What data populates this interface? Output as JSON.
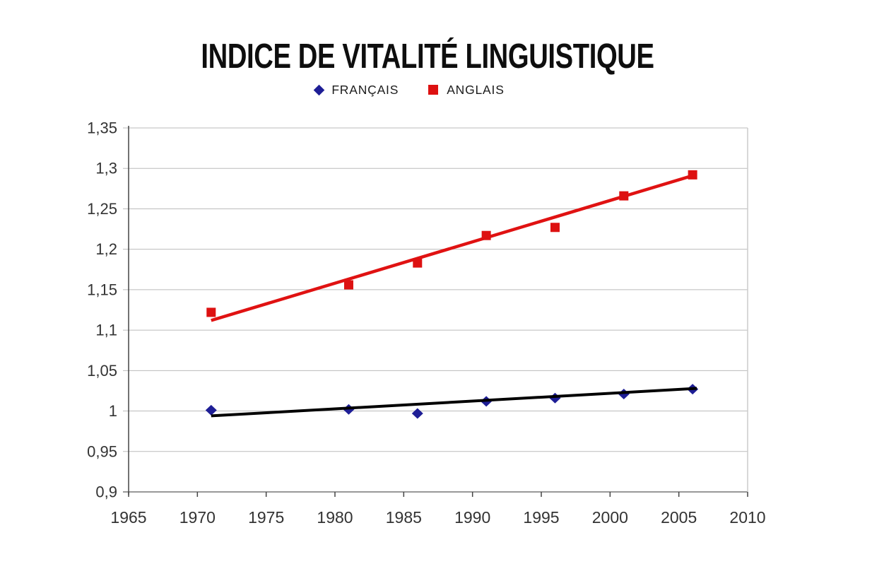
{
  "title": "INDICE DE VITALITÉ LINGUISTIQUE",
  "colors": {
    "background": "#ffffff",
    "title_text": "#0e0e0e",
    "axis_text": "#333333",
    "grid": "#bbbbbb",
    "axis_line": "#444444",
    "bottom_axis_line": "#999999",
    "right_border": "#cccccc",
    "francais_marker": "#1e1e96",
    "francais_trend": "#000000",
    "anglais_marker": "#dd1111",
    "anglais_trend": "#e01212"
  },
  "legend": [
    {
      "label": "FRANÇAIS",
      "marker": "diamond",
      "color": "#1e1e96"
    },
    {
      "label": "ANGLAIS",
      "marker": "square",
      "color": "#dd1111"
    }
  ],
  "chart_data": {
    "type": "scatter",
    "title": "INDICE DE VITALITÉ LINGUISTIQUE",
    "x": [
      1971,
      1981,
      1986,
      1991,
      1996,
      2001,
      2006
    ],
    "series": [
      {
        "name": "FRANÇAIS",
        "marker": "diamond",
        "color": "#1e1e96",
        "values": [
          1.001,
          1.002,
          0.997,
          1.012,
          1.016,
          1.021,
          1.027
        ],
        "trendline": {
          "x1": 1971,
          "y1": 0.994,
          "x2": 2006,
          "y2": 1.028,
          "color": "#000000",
          "width": 4
        }
      },
      {
        "name": "ANGLAIS",
        "marker": "square",
        "color": "#dd1111",
        "values": [
          1.122,
          1.156,
          1.183,
          1.217,
          1.227,
          1.266,
          1.292
        ],
        "trendline": {
          "x1": 1971,
          "y1": 1.112,
          "x2": 2006,
          "y2": 1.291,
          "color": "#e01212",
          "width": 4.5
        }
      }
    ],
    "xlim": [
      1965,
      2010
    ],
    "ylim": [
      0.9,
      1.35
    ],
    "x_ticks": [
      1965,
      1970,
      1975,
      1980,
      1985,
      1990,
      1995,
      2000,
      2005,
      2010
    ],
    "x_tick_labels": [
      "1965",
      "1970",
      "1975",
      "1980",
      "1985",
      "1990",
      "1995",
      "2000",
      "2005",
      "2010"
    ],
    "y_ticks": [
      0.9,
      0.95,
      1.0,
      1.05,
      1.1,
      1.15,
      1.2,
      1.25,
      1.3,
      1.35
    ],
    "y_tick_labels": [
      "0,9",
      "0,95",
      "1",
      "1,05",
      "1,1",
      "1,15",
      "1,2",
      "1,25",
      "1,3",
      "1,35"
    ],
    "grid": true,
    "legend_position": "top"
  }
}
